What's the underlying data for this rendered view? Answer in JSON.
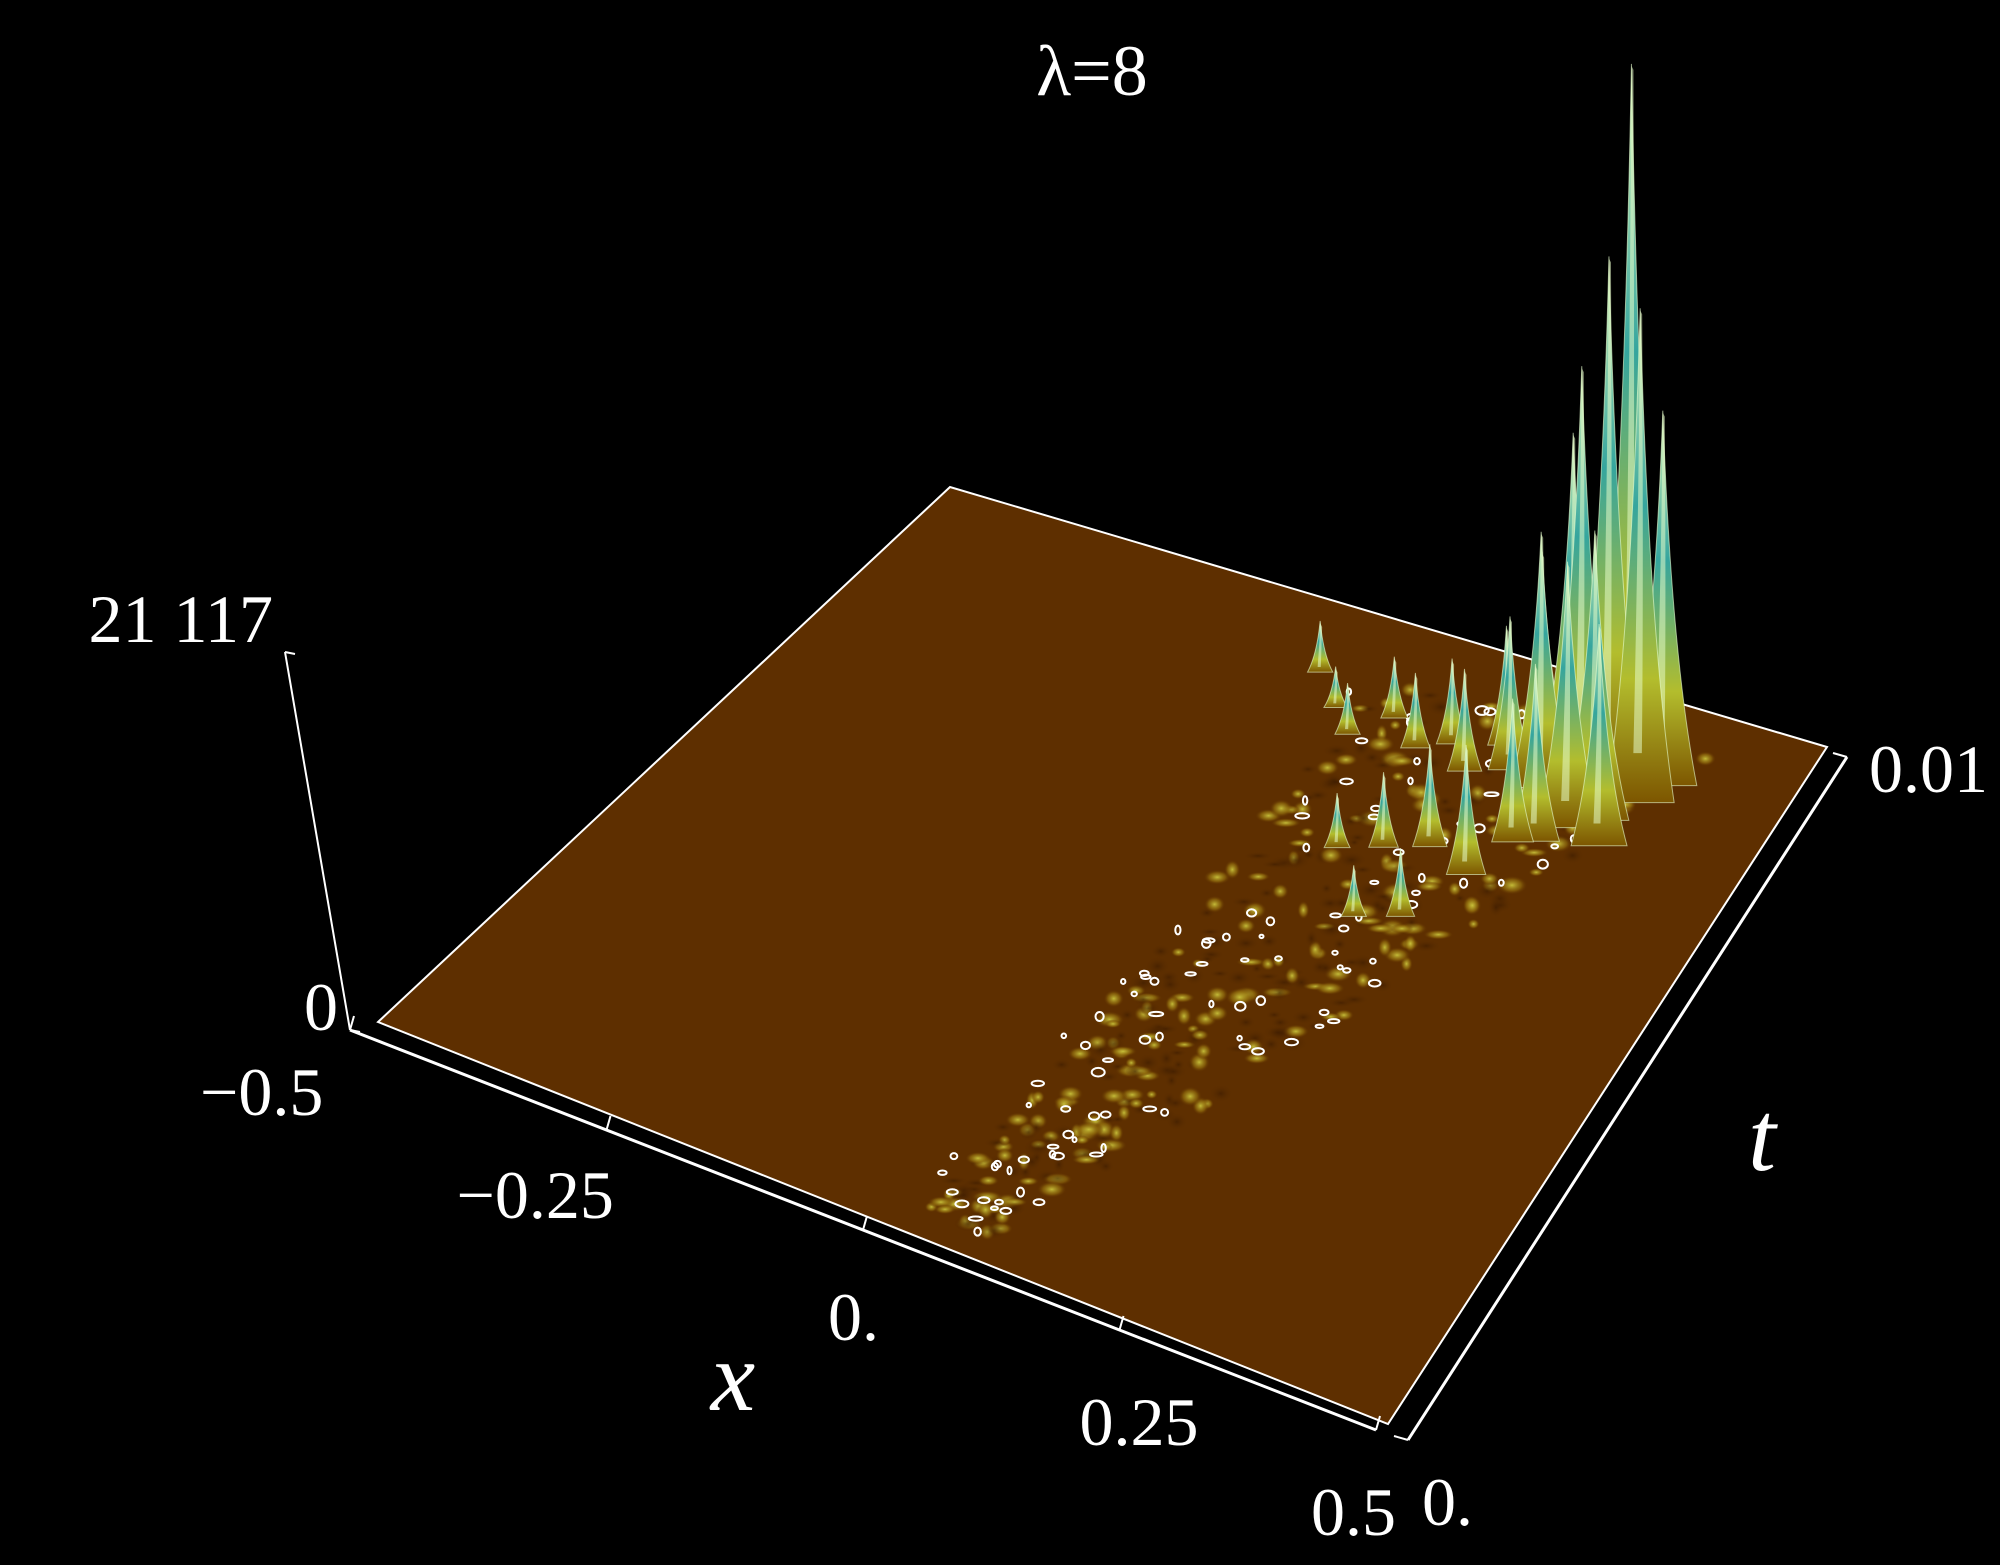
{
  "chart_data": {
    "type": "surface3d",
    "title": "λ=8",
    "xlabel": "x",
    "ylabel": "t",
    "zlabel": "",
    "x_ticks": [
      "−0.5",
      "−0.25",
      "0.",
      "0.25",
      "0.5"
    ],
    "x_tick_values": [
      -0.5,
      -0.25,
      0,
      0.25,
      0.5
    ],
    "t_ticks": [
      "0.",
      "0.01"
    ],
    "t_tick_values": [
      0,
      0.01
    ],
    "z_ticks": [
      "0",
      "21 117"
    ],
    "z_tick_values": [
      0,
      21117
    ],
    "xlim": [
      -0.5,
      0.5
    ],
    "tlim": [
      0,
      0.01
    ],
    "zlim": [
      0,
      21117
    ],
    "peaks": [
      {
        "x": 0.34,
        "t": 0.0088,
        "z": 21117
      },
      {
        "x": 0.32,
        "t": 0.0087,
        "z": 15500
      },
      {
        "x": 0.36,
        "t": 0.0086,
        "z": 14500
      },
      {
        "x": 0.3,
        "t": 0.0085,
        "z": 12500
      },
      {
        "x": 0.37,
        "t": 0.0089,
        "z": 11000
      },
      {
        "x": 0.28,
        "t": 0.0087,
        "z": 10000
      },
      {
        "x": 0.33,
        "t": 0.0082,
        "z": 8500
      },
      {
        "x": 0.31,
        "t": 0.008,
        "z": 7800
      },
      {
        "x": 0.26,
        "t": 0.0084,
        "z": 7500
      },
      {
        "x": 0.35,
        "t": 0.0079,
        "z": 6500
      },
      {
        "x": 0.24,
        "t": 0.0088,
        "z": 6000
      },
      {
        "x": 0.29,
        "t": 0.0077,
        "z": 5200
      },
      {
        "x": 0.22,
        "t": 0.0085,
        "z": 4500
      },
      {
        "x": 0.27,
        "t": 0.0076,
        "z": 4200
      },
      {
        "x": 0.2,
        "t": 0.0088,
        "z": 3500
      },
      {
        "x": 0.18,
        "t": 0.0083,
        "z": 3000
      },
      {
        "x": 0.15,
        "t": 0.0086,
        "z": 2500
      },
      {
        "x": 0.12,
        "t": 0.0084,
        "z": 2200
      },
      {
        "x": 0.08,
        "t": 0.0087,
        "z": 1800
      },
      {
        "x": 0.05,
        "t": 0.0083,
        "z": 1500
      },
      {
        "x": 0.02,
        "t": 0.0086,
        "z": 1200
      },
      {
        "x": -0.02,
        "t": 0.009,
        "z": 1500
      },
      {
        "x": 0.25,
        "t": 0.007,
        "z": 3800
      },
      {
        "x": 0.2,
        "t": 0.0072,
        "z": 3000
      },
      {
        "x": 0.16,
        "t": 0.007,
        "z": 2200
      },
      {
        "x": 0.12,
        "t": 0.0068,
        "z": 1600
      },
      {
        "x": 0.22,
        "t": 0.0062,
        "z": 2000
      },
      {
        "x": 0.18,
        "t": 0.006,
        "z": 1500
      }
    ],
    "colors": {
      "floor": "#5e2f00",
      "floor_edge": "#ffffff",
      "low": "#8a5a00",
      "mid": "#b9c43a",
      "high": "#30a7a3",
      "top": "#d8f4b2",
      "contour": "#ffffff"
    },
    "grid": false,
    "legend": "none"
  }
}
